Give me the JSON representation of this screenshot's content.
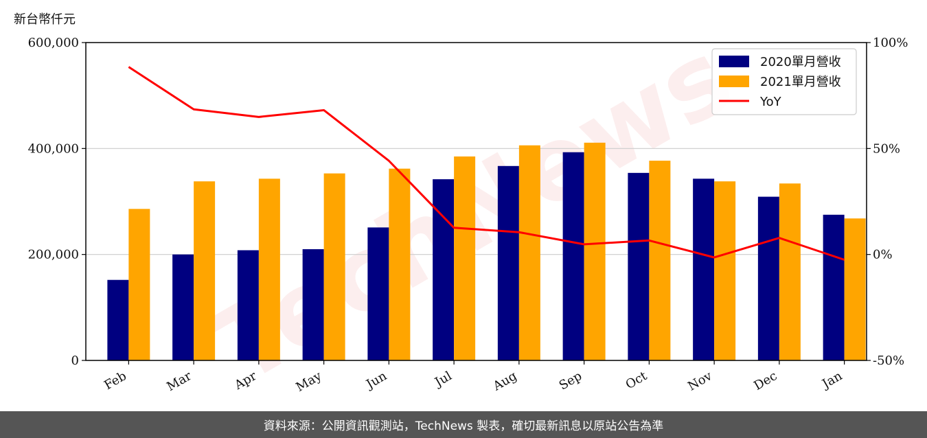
{
  "header": {
    "unit_label": "新台幣仟元"
  },
  "footer": {
    "source": "資料來源：公開資訊觀測站，TechNews 製表，確切最新訊息以原站公告為準"
  },
  "watermark": {
    "text": "TechNews"
  },
  "colors": {
    "series2020": "#000080",
    "series2021": "#FFA500",
    "yoy": "#FF0000",
    "grid": "#cccccc",
    "footer_bg": "#555555"
  },
  "chart_data": {
    "type": "bar",
    "categories": [
      "Feb",
      "Mar",
      "Apr",
      "May",
      "Jun",
      "Jul",
      "Aug",
      "Sep",
      "Oct",
      "Nov",
      "Dec",
      "Jan"
    ],
    "series": [
      {
        "name": "2020單月營收",
        "type": "bar",
        "axis": "left",
        "values": [
          152000,
          200000,
          208000,
          210000,
          251000,
          342000,
          367000,
          393000,
          354000,
          343000,
          309000,
          275000
        ]
      },
      {
        "name": "2021單月營收",
        "type": "bar",
        "axis": "left",
        "values": [
          286000,
          338000,
          343000,
          353000,
          362000,
          385000,
          406000,
          411000,
          377000,
          338000,
          334000,
          268000
        ]
      },
      {
        "name": "YoY",
        "type": "line",
        "axis": "right",
        "values": [
          88.5,
          68.5,
          64.9,
          68.1,
          44.2,
          12.6,
          10.5,
          4.8,
          6.6,
          -1.4,
          7.8,
          -2.5
        ]
      }
    ],
    "left_axis": {
      "min": 0,
      "max": 600000,
      "ticks": [
        0,
        200000,
        400000,
        600000
      ],
      "tick_labels": [
        "0",
        "200,000",
        "400,000",
        "600,000"
      ]
    },
    "right_axis": {
      "min": -50,
      "max": 100,
      "ticks": [
        -50,
        0,
        50,
        100
      ],
      "tick_labels": [
        "-50%",
        "0%",
        "50%",
        "100%"
      ]
    },
    "grid": "horizontal",
    "legend_position": "top-right"
  }
}
